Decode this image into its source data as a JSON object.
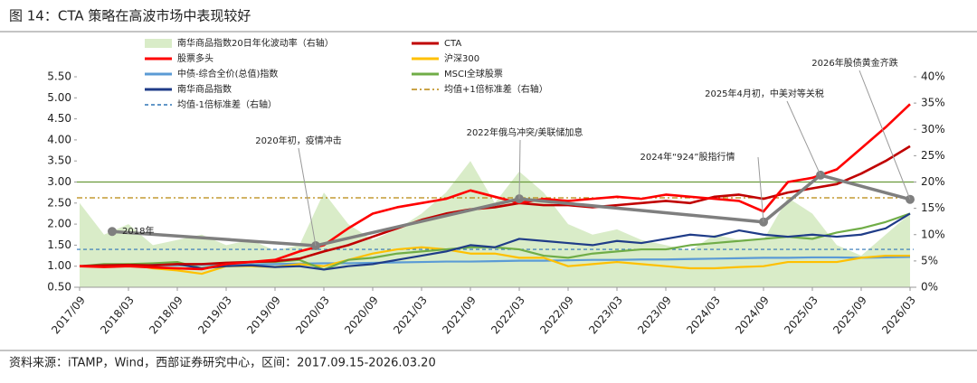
{
  "chart_data": {
    "type": "line",
    "title": "图 14：CTA 策略在高波市场中表现较好",
    "source": "资料来源：iTAMP，Wind，西部证券研究中心，区间：2017.09.15-2026.03.20",
    "x": [
      "2017/09",
      "2017/12",
      "2018/03",
      "2018/06",
      "2018/09",
      "2018/12",
      "2019/03",
      "2019/06",
      "2019/09",
      "2019/12",
      "2020/03",
      "2020/06",
      "2020/09",
      "2020/12",
      "2021/03",
      "2021/06",
      "2021/09",
      "2021/12",
      "2022/03",
      "2022/06",
      "2022/09",
      "2022/12",
      "2023/03",
      "2023/06",
      "2023/09",
      "2023/12",
      "2024/03",
      "2024/06",
      "2024/09",
      "2024/12",
      "2025/03",
      "2025/06",
      "2025/09",
      "2025/12",
      "2026/03"
    ],
    "xticks": [
      "2017/09",
      "2018/03",
      "2018/09",
      "2019/03",
      "2019/09",
      "2020/03",
      "2020/09",
      "2021/03",
      "2021/09",
      "2022/03",
      "2022/09",
      "2023/03",
      "2023/09",
      "2024/03",
      "2024/09",
      "2025/03",
      "2025/09",
      "2026/03"
    ],
    "ylim": [
      0.5,
      5.5
    ],
    "yticks": [
      {
        "value": 0.5,
        "label": "0.50"
      },
      {
        "value": 1.0,
        "label": "1.00"
      },
      {
        "value": 1.5,
        "label": "1.50"
      },
      {
        "value": 2.0,
        "label": "2.00"
      },
      {
        "value": 2.5,
        "label": "2.50"
      },
      {
        "value": 3.0,
        "label": "3.00"
      },
      {
        "value": 3.5,
        "label": "3.50"
      },
      {
        "value": 4.0,
        "label": "4.00"
      },
      {
        "value": 4.5,
        "label": "4.50"
      },
      {
        "value": 5.0,
        "label": "5.00"
      },
      {
        "value": 5.5,
        "label": "5.50"
      }
    ],
    "y2lim": [
      0,
      40
    ],
    "y2ticks": [
      {
        "value": 0,
        "label": "0%"
      },
      {
        "value": 5,
        "label": "5%"
      },
      {
        "value": 10,
        "label": "10%"
      },
      {
        "value": 15,
        "label": "15%"
      },
      {
        "value": 20,
        "label": "20%"
      },
      {
        "value": 25,
        "label": "25%"
      },
      {
        "value": 30,
        "label": "30%"
      },
      {
        "value": 35,
        "label": "35%"
      },
      {
        "value": 40,
        "label": "40%"
      }
    ],
    "grid": false,
    "series": [
      {
        "name": "南华商品指数20日年化波动率（右轴）",
        "type": "area",
        "axis": "y2",
        "color": "#d9ecc8",
        "values": [
          16,
          10,
          12,
          8,
          9,
          10,
          8,
          9,
          7,
          8,
          18,
          12,
          9,
          11,
          14,
          18,
          24,
          16,
          22,
          18,
          12,
          10,
          11,
          9,
          8,
          7,
          10,
          9,
          9,
          17,
          14,
          8,
          6,
          10,
          14
        ]
      },
      {
        "name": "CTA",
        "color": "#c00000",
        "values": [
          1.0,
          1.02,
          1.03,
          1.02,
          1.05,
          1.05,
          1.08,
          1.1,
          1.12,
          1.18,
          1.35,
          1.5,
          1.7,
          1.9,
          2.1,
          2.25,
          2.35,
          2.4,
          2.5,
          2.45,
          2.45,
          2.4,
          2.45,
          2.5,
          2.55,
          2.5,
          2.65,
          2.7,
          2.6,
          2.75,
          2.85,
          2.95,
          3.2,
          3.5,
          3.85
        ]
      },
      {
        "name": "股票多头",
        "color": "#ff0000",
        "values": [
          1.0,
          0.98,
          1.0,
          0.97,
          0.95,
          0.93,
          1.05,
          1.1,
          1.15,
          1.35,
          1.5,
          1.9,
          2.25,
          2.4,
          2.5,
          2.6,
          2.8,
          2.65,
          2.5,
          2.6,
          2.55,
          2.6,
          2.65,
          2.6,
          2.7,
          2.65,
          2.6,
          2.55,
          2.3,
          3.0,
          3.1,
          3.3,
          3.8,
          4.3,
          4.85
        ]
      },
      {
        "name": "沪深300",
        "color": "#ffc000",
        "values": [
          1.0,
          1.02,
          1.05,
          0.95,
          0.9,
          0.82,
          1.0,
          1.0,
          0.98,
          1.05,
          1.0,
          1.15,
          1.3,
          1.4,
          1.45,
          1.4,
          1.3,
          1.3,
          1.2,
          1.2,
          1.0,
          1.05,
          1.1,
          1.05,
          1.0,
          0.95,
          0.95,
          0.98,
          1.0,
          1.1,
          1.1,
          1.1,
          1.2,
          1.25,
          1.25
        ]
      },
      {
        "name": "中债-综合全价(总值)指数",
        "color": "#5b9bd5",
        "values": [
          1.0,
          1.0,
          1.01,
          1.02,
          1.02,
          1.03,
          1.04,
          1.04,
          1.05,
          1.06,
          1.07,
          1.07,
          1.08,
          1.09,
          1.1,
          1.11,
          1.11,
          1.12,
          1.13,
          1.13,
          1.14,
          1.15,
          1.15,
          1.16,
          1.16,
          1.17,
          1.18,
          1.19,
          1.2,
          1.2,
          1.21,
          1.21,
          1.2,
          1.21,
          1.22
        ]
      },
      {
        "name": "MSCI全球股票",
        "color": "#70ad47",
        "values": [
          1.0,
          1.05,
          1.05,
          1.07,
          1.1,
          0.95,
          1.05,
          1.1,
          1.1,
          1.15,
          0.92,
          1.15,
          1.2,
          1.3,
          1.35,
          1.4,
          1.45,
          1.45,
          1.4,
          1.25,
          1.2,
          1.3,
          1.35,
          1.4,
          1.4,
          1.5,
          1.55,
          1.6,
          1.65,
          1.7,
          1.65,
          1.8,
          1.9,
          2.05,
          2.25
        ]
      },
      {
        "name": "南华商品指数",
        "color": "#1f3c88",
        "values": [
          1.0,
          1.02,
          1.0,
          1.03,
          1.05,
          0.95,
          1.0,
          1.02,
          0.98,
          1.0,
          0.92,
          1.0,
          1.05,
          1.15,
          1.25,
          1.35,
          1.5,
          1.45,
          1.65,
          1.6,
          1.55,
          1.5,
          1.6,
          1.55,
          1.65,
          1.75,
          1.7,
          1.85,
          1.75,
          1.7,
          1.75,
          1.7,
          1.75,
          1.9,
          2.25
        ]
      }
    ],
    "ref_lines": [
      {
        "name": "均值+1倍标准差（右轴）",
        "axis": "y2",
        "value": 17.0,
        "color": "#b8860b",
        "dash": "6 3 2 3"
      },
      {
        "name": "均值-1倍标准差（右轴）",
        "axis": "y2",
        "value": 7.2,
        "color": "#2e75b6",
        "dash": "4 3"
      }
    ],
    "hlines": [
      {
        "axis": "y",
        "value": 3.0,
        "color": "#6a9a3a"
      }
    ],
    "annotations": [
      {
        "label": "2018年",
        "x": "2018/01",
        "value": 10.6
      },
      {
        "label": "2020年初，疫情冲击",
        "x": "2020/02",
        "value": 7.9
      },
      {
        "label": "2022年俄乌冲突/美联储加息",
        "x": "2022/03",
        "value": 16.8
      },
      {
        "label": "2024年“924”股指行情",
        "x": "2024/09",
        "value": 12.4
      },
      {
        "label": "2025年4月初，中美对等关税",
        "x": "2025/04",
        "value": 21.3
      },
      {
        "label": "2026年股债黄金齐跌",
        "x": "2026/03",
        "value": 16.7
      }
    ],
    "annotation_color": "#7f7f7f"
  }
}
